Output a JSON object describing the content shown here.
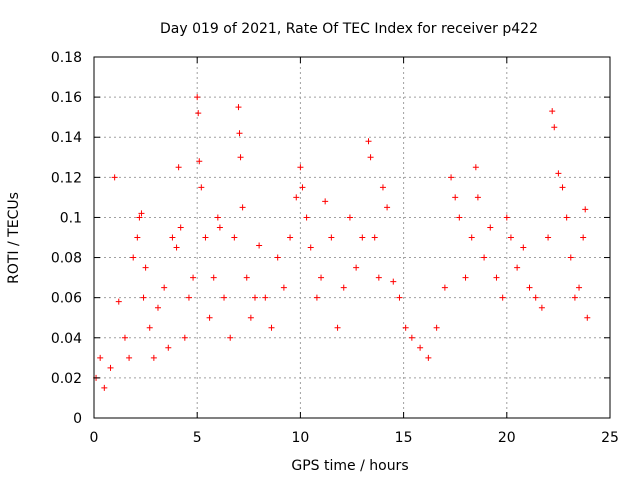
{
  "chart_data": {
    "type": "scatter",
    "title": "Day 019 of 2021, Rate Of TEC Index for receiver p422",
    "xlabel": "GPS time / hours",
    "ylabel": "ROTI / TECUs",
    "xlim": [
      0,
      25
    ],
    "ylim": [
      0,
      0.18
    ],
    "xticks": [
      0,
      5,
      10,
      15,
      20,
      25
    ],
    "xtick_labels": [
      "0",
      "5",
      "10",
      "15",
      "20",
      "25"
    ],
    "yticks": [
      0,
      0.02,
      0.04,
      0.06,
      0.08,
      0.1,
      0.12,
      0.14,
      0.16,
      0.18
    ],
    "ytick_labels": [
      "0",
      "0.02",
      "0.04",
      "0.06",
      "0.08",
      "0.1",
      "0.12",
      "0.14",
      "0.16",
      "0.18"
    ],
    "grid": true,
    "marker": "+",
    "color": "#ff0000",
    "series": [
      {
        "x": [
          0.1,
          0.3,
          0.5,
          0.8,
          1.0,
          1.2,
          1.5,
          1.7,
          1.9,
          2.1,
          2.2,
          2.3,
          2.4,
          2.5,
          2.7,
          2.9,
          3.1,
          3.4,
          3.6,
          3.8,
          4.0,
          4.1,
          4.2,
          4.4,
          4.6,
          4.8,
          5.0,
          5.05,
          5.1,
          5.2,
          5.4,
          5.6,
          5.8,
          6.0,
          6.1,
          6.3,
          6.6,
          6.8,
          7.0,
          7.05,
          7.1,
          7.2,
          7.4,
          7.6,
          7.8,
          8.0,
          8.3,
          8.6,
          8.9,
          9.2,
          9.5,
          9.8,
          10.0,
          10.1,
          10.3,
          10.5,
          10.8,
          11.0,
          11.2,
          11.5,
          11.8,
          12.1,
          12.4,
          12.7,
          13.0,
          13.3,
          13.4,
          13.6,
          13.8,
          14.0,
          14.2,
          14.5,
          14.8,
          15.1,
          15.4,
          15.8,
          16.2,
          16.6,
          17.0,
          17.3,
          17.5,
          17.7,
          18.0,
          18.3,
          18.5,
          18.6,
          18.9,
          19.2,
          19.5,
          19.8,
          20.0,
          20.2,
          20.5,
          20.8,
          21.1,
          21.4,
          21.7,
          22.0,
          22.2,
          22.3,
          22.5,
          22.7,
          22.9,
          23.1,
          23.3,
          23.5,
          23.7,
          23.8,
          23.9
        ],
        "y": [
          0.02,
          0.03,
          0.015,
          0.025,
          0.12,
          0.058,
          0.04,
          0.03,
          0.08,
          0.09,
          0.1,
          0.102,
          0.06,
          0.075,
          0.045,
          0.03,
          0.055,
          0.065,
          0.035,
          0.09,
          0.085,
          0.125,
          0.095,
          0.04,
          0.06,
          0.07,
          0.16,
          0.152,
          0.128,
          0.115,
          0.09,
          0.05,
          0.07,
          0.1,
          0.095,
          0.06,
          0.04,
          0.09,
          0.155,
          0.142,
          0.13,
          0.105,
          0.07,
          0.05,
          0.06,
          0.086,
          0.06,
          0.045,
          0.08,
          0.065,
          0.09,
          0.11,
          0.125,
          0.115,
          0.1,
          0.085,
          0.06,
          0.07,
          0.108,
          0.09,
          0.045,
          0.065,
          0.1,
          0.075,
          0.09,
          0.138,
          0.13,
          0.09,
          0.07,
          0.115,
          0.105,
          0.068,
          0.06,
          0.045,
          0.04,
          0.035,
          0.03,
          0.045,
          0.065,
          0.12,
          0.11,
          0.1,
          0.07,
          0.09,
          0.125,
          0.11,
          0.08,
          0.095,
          0.07,
          0.06,
          0.1,
          0.09,
          0.075,
          0.085,
          0.065,
          0.06,
          0.055,
          0.09,
          0.153,
          0.145,
          0.122,
          0.115,
          0.1,
          0.08,
          0.06,
          0.065,
          0.09,
          0.104,
          0.05
        ]
      }
    ]
  }
}
